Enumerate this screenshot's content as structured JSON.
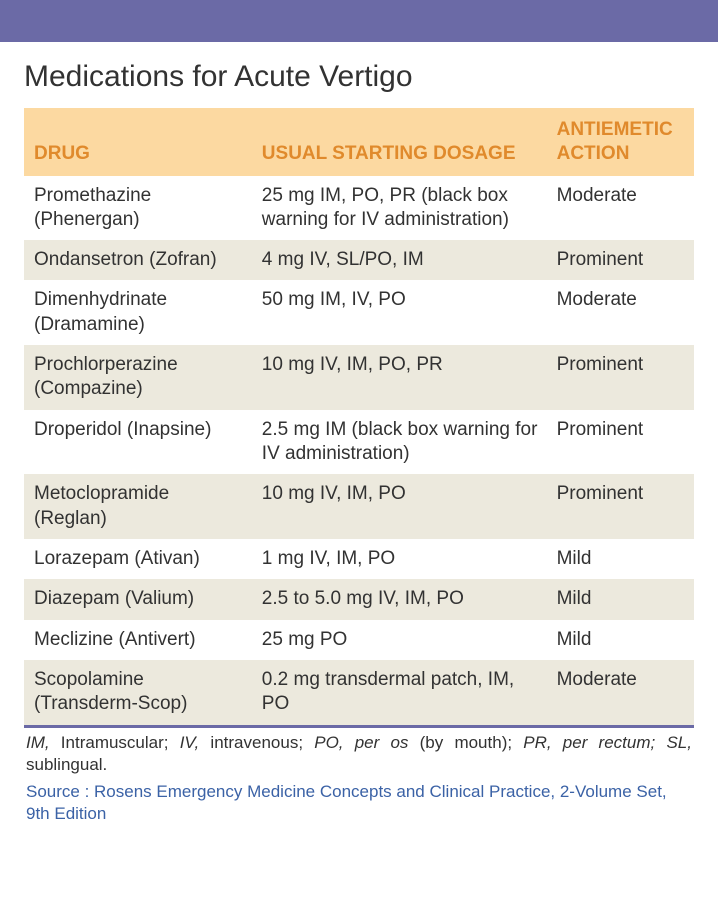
{
  "style": {
    "topbar_color": "#6b6aa6",
    "header_bg": "#fcd9a1",
    "header_text": "#e08a2c",
    "stripe_bg": "#ece9dd",
    "title_color": "#323232",
    "body_text": "#323232",
    "rule_color": "#6b6aa6",
    "footnote_text": "#323232",
    "source_text": "#3b62a6"
  },
  "title": "Medications for Acute Vertigo",
  "columns": {
    "drug": "DRUG",
    "dosage": "USUAL STARTING DOSAGE",
    "action": "ANTIEMETIC ACTION"
  },
  "rows": [
    {
      "drug": "Promethazine (Phenergan)",
      "dosage": "25 mg IM, PO, PR (black box warning for IV administration)",
      "action": "Moderate"
    },
    {
      "drug": "Ondansetron (Zofran)",
      "dosage": "4 mg IV, SL/PO, IM",
      "action": "Prominent"
    },
    {
      "drug": "Dimenhydrinate (Dramamine)",
      "dosage": "50 mg IM, IV, PO",
      "action": "Moderate"
    },
    {
      "drug": "Prochlorperazine (Compazine)",
      "dosage": "10 mg IV, IM, PO, PR",
      "action": "Prominent"
    },
    {
      "drug": "Droperidol (Inapsine)",
      "dosage": "2.5 mg IM (black box warning for IV administration)",
      "action": "Prominent"
    },
    {
      "drug": "Metoclopramide (Reglan)",
      "dosage": "10 mg IV, IM, PO",
      "action": "Prominent"
    },
    {
      "drug": "Lorazepam (Ativan)",
      "dosage": "1 mg IV, IM, PO",
      "action": "Mild"
    },
    {
      "drug": "Diazepam (Valium)",
      "dosage": "2.5 to 5.0 mg IV, IM, PO",
      "action": "Mild"
    },
    {
      "drug": "Meclizine (Antivert)",
      "dosage": "25 mg PO",
      "action": "Mild"
    },
    {
      "drug": "Scopolamine (Transderm-Scop)",
      "dosage": "0.2 mg transdermal patch, IM, PO",
      "action": "Moderate"
    }
  ],
  "footnote": {
    "im_abbr": "IM,",
    "im_def": " Intramuscular; ",
    "iv_abbr": "IV,",
    "iv_def": " intravenous; ",
    "po_abbr": "PO, per os",
    "po_def": " (by mouth); ",
    "pr_abbr": "PR, per rectum;",
    "pr_def": " ",
    "sl_abbr": "SL,",
    "sl_def": " sublingual."
  },
  "source": "Source : Rosens Emergency Medicine Concepts and Clinical Practice, 2-Volume Set, 9th Edition"
}
